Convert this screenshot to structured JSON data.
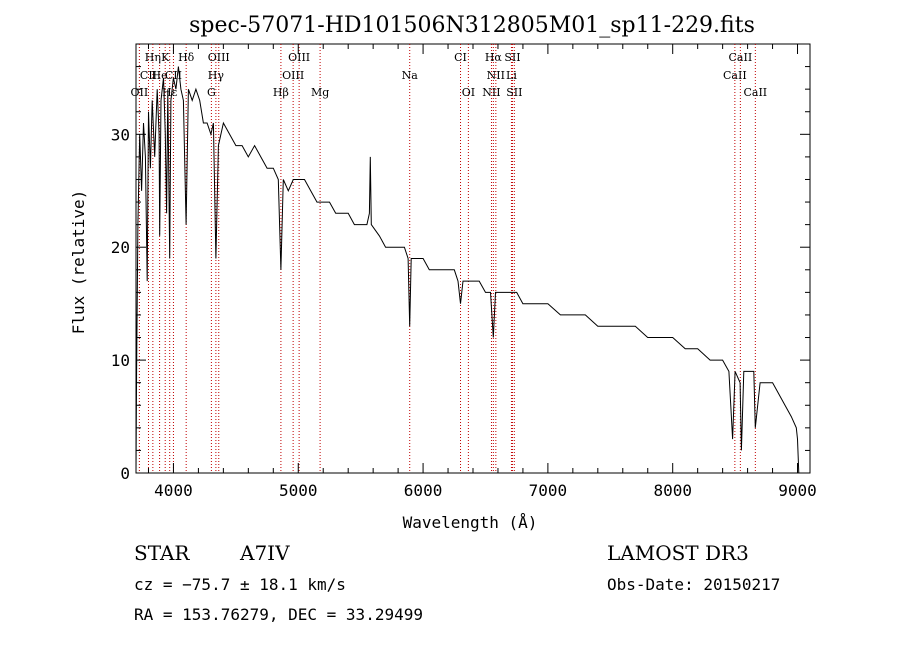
{
  "chart_data": {
    "type": "line",
    "title": "spec-57071-HD101506N312805M01_sp11-229.fits",
    "xlabel": "Wavelength (Å)",
    "ylabel": "Flux (relative)",
    "xlim": [
      3700,
      9100
    ],
    "ylim": [
      0,
      38
    ],
    "grid": false,
    "xticks": [
      4000,
      5000,
      6000,
      7000,
      8000,
      9000
    ],
    "yticks": [
      0,
      10,
      20,
      30
    ],
    "xtick_labels": [
      "4000",
      "5000",
      "6000",
      "7000",
      "8000",
      "9000"
    ],
    "ytick_labels": [
      "0",
      "10",
      "20",
      "30"
    ],
    "series": [
      {
        "name": "flux",
        "color": "#000000",
        "points": [
          [
            3700,
            0
          ],
          [
            3705,
            9
          ],
          [
            3715,
            22
          ],
          [
            3730,
            30
          ],
          [
            3745,
            25
          ],
          [
            3760,
            31
          ],
          [
            3775,
            28
          ],
          [
            3790,
            17
          ],
          [
            3800,
            32
          ],
          [
            3815,
            27
          ],
          [
            3830,
            33
          ],
          [
            3850,
            28
          ],
          [
            3870,
            34
          ],
          [
            3885,
            30
          ],
          [
            3890,
            21
          ],
          [
            3900,
            33
          ],
          [
            3920,
            35
          ],
          [
            3935,
            30
          ],
          [
            3945,
            23
          ],
          [
            3955,
            34
          ],
          [
            3970,
            19
          ],
          [
            3980,
            33
          ],
          [
            4000,
            35
          ],
          [
            4020,
            34
          ],
          [
            4040,
            36
          ],
          [
            4060,
            34
          ],
          [
            4080,
            33
          ],
          [
            4101,
            22
          ],
          [
            4120,
            34
          ],
          [
            4150,
            33
          ],
          [
            4180,
            34
          ],
          [
            4210,
            33
          ],
          [
            4240,
            31
          ],
          [
            4270,
            31
          ],
          [
            4300,
            30
          ],
          [
            4320,
            31
          ],
          [
            4340,
            19
          ],
          [
            4360,
            29
          ],
          [
            4400,
            31
          ],
          [
            4450,
            30
          ],
          [
            4500,
            29
          ],
          [
            4550,
            29
          ],
          [
            4600,
            28
          ],
          [
            4650,
            29
          ],
          [
            4700,
            28
          ],
          [
            4750,
            27
          ],
          [
            4800,
            27
          ],
          [
            4840,
            26
          ],
          [
            4861,
            18
          ],
          [
            4880,
            26
          ],
          [
            4920,
            25
          ],
          [
            4960,
            26
          ],
          [
            5000,
            26
          ],
          [
            5050,
            26
          ],
          [
            5100,
            25
          ],
          [
            5150,
            24
          ],
          [
            5200,
            24
          ],
          [
            5250,
            24
          ],
          [
            5300,
            23
          ],
          [
            5350,
            23
          ],
          [
            5400,
            23
          ],
          [
            5450,
            22
          ],
          [
            5500,
            22
          ],
          [
            5550,
            22
          ],
          [
            5570,
            23
          ],
          [
            5577,
            28
          ],
          [
            5585,
            22
          ],
          [
            5650,
            21
          ],
          [
            5700,
            20
          ],
          [
            5750,
            20
          ],
          [
            5800,
            20
          ],
          [
            5850,
            20
          ],
          [
            5880,
            19
          ],
          [
            5893,
            13
          ],
          [
            5905,
            19
          ],
          [
            5950,
            19
          ],
          [
            6000,
            19
          ],
          [
            6050,
            18
          ],
          [
            6100,
            18
          ],
          [
            6150,
            18
          ],
          [
            6200,
            18
          ],
          [
            6250,
            18
          ],
          [
            6280,
            17
          ],
          [
            6300,
            15
          ],
          [
            6320,
            17
          ],
          [
            6400,
            17
          ],
          [
            6450,
            17
          ],
          [
            6500,
            16
          ],
          [
            6540,
            16
          ],
          [
            6563,
            12
          ],
          [
            6580,
            16
          ],
          [
            6650,
            16
          ],
          [
            6700,
            16
          ],
          [
            6750,
            16
          ],
          [
            6800,
            15
          ],
          [
            6900,
            15
          ],
          [
            7000,
            15
          ],
          [
            7100,
            14
          ],
          [
            7200,
            14
          ],
          [
            7300,
            14
          ],
          [
            7400,
            13
          ],
          [
            7500,
            13
          ],
          [
            7600,
            13
          ],
          [
            7700,
            13
          ],
          [
            7800,
            12
          ],
          [
            7900,
            12
          ],
          [
            8000,
            12
          ],
          [
            8100,
            11
          ],
          [
            8200,
            11
          ],
          [
            8300,
            10
          ],
          [
            8400,
            10
          ],
          [
            8450,
            9
          ],
          [
            8480,
            3
          ],
          [
            8500,
            9
          ],
          [
            8540,
            8
          ],
          [
            8550,
            2
          ],
          [
            8570,
            9
          ],
          [
            8600,
            9
          ],
          [
            8650,
            9
          ],
          [
            8662,
            4
          ],
          [
            8700,
            8
          ],
          [
            8750,
            8
          ],
          [
            8800,
            8
          ],
          [
            8850,
            7
          ],
          [
            8900,
            6
          ],
          [
            8950,
            5
          ],
          [
            8990,
            4
          ],
          [
            9000,
            3
          ],
          [
            9010,
            0
          ]
        ]
      }
    ],
    "line_markers": [
      {
        "label": "Hη",
        "x": 3835,
        "tier": 1
      },
      {
        "label": "K",
        "x": 3934,
        "tier": 1
      },
      {
        "label": "Hδ",
        "x": 4102,
        "tier": 1
      },
      {
        "label": "OIII",
        "x": 4363,
        "tier": 1
      },
      {
        "label": "OIII",
        "x": 5007,
        "tier": 1
      },
      {
        "label": "CI",
        "x": 6300,
        "tier": 1
      },
      {
        "label": "Hα",
        "x": 6563,
        "tier": 1
      },
      {
        "label": "SII",
        "x": 6716,
        "tier": 1
      },
      {
        "label": "CaII",
        "x": 8542,
        "tier": 1
      },
      {
        "label": "CII",
        "x": 3800,
        "tier": 2
      },
      {
        "label": "He",
        "x": 3889,
        "tier": 2
      },
      {
        "label": "CII",
        "x": 4000,
        "tier": 2
      },
      {
        "label": "Hγ",
        "x": 4340,
        "tier": 2
      },
      {
        "label": "OIII",
        "x": 4959,
        "tier": 2
      },
      {
        "label": "Na",
        "x": 5893,
        "tier": 2
      },
      {
        "label": "NII",
        "x": 6583,
        "tier": 2
      },
      {
        "label": "Li",
        "x": 6708,
        "tier": 2
      },
      {
        "label": "CaII",
        "x": 8498,
        "tier": 2
      },
      {
        "label": "OII",
        "x": 3727,
        "tier": 3
      },
      {
        "label": "Hε",
        "x": 3970,
        "tier": 3
      },
      {
        "label": "G",
        "x": 4304,
        "tier": 3
      },
      {
        "label": "Hβ",
        "x": 4861,
        "tier": 3
      },
      {
        "label": "Mg",
        "x": 5175,
        "tier": 3
      },
      {
        "label": "OI",
        "x": 6363,
        "tier": 3
      },
      {
        "label": "NII",
        "x": 6548,
        "tier": 3
      },
      {
        "label": "SII",
        "x": 6731,
        "tier": 3
      },
      {
        "label": "CaII",
        "x": 8662,
        "tier": 3
      }
    ]
  },
  "info": {
    "object_class": "STAR",
    "subclass": "A7IV",
    "survey": "LAMOST DR3",
    "cz": "cz = −75.7 ± 18.1 km/s",
    "obs_date": "Obs-Date: 20150217",
    "coords": "RA = 153.76279, DEC =  33.29499"
  }
}
